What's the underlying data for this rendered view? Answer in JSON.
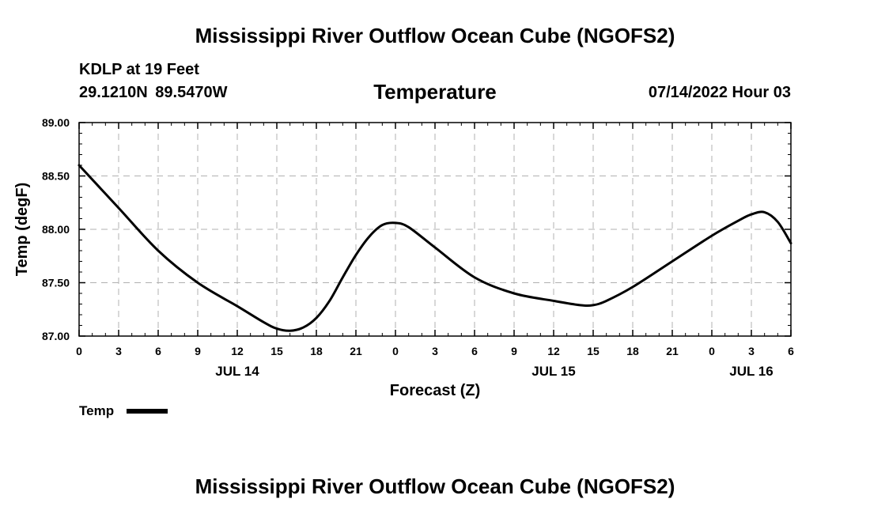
{
  "header": {
    "title": "Mississippi River Outflow Ocean Cube (NGOFS2)",
    "station": "KDLP at 19 Feet",
    "coords": "29.1210N  89.5470W",
    "subtitle": "Temperature",
    "datetime": "07/14/2022 Hour 03"
  },
  "footer": {
    "title": "Mississippi River Outflow Ocean Cube (NGOFS2)"
  },
  "chart_data": {
    "type": "line",
    "title": "Temperature",
    "xlabel": "Forecast (Z)",
    "ylabel": "Temp (degF)",
    "xlim": [
      0,
      54
    ],
    "ylim": [
      87.0,
      89.0
    ],
    "x_ticks": [
      0,
      3,
      6,
      9,
      12,
      15,
      18,
      21,
      24,
      27,
      30,
      33,
      36,
      39,
      42,
      45,
      48,
      51,
      54
    ],
    "x_tick_labels": [
      "0",
      "3",
      "6",
      "9",
      "12",
      "15",
      "18",
      "21",
      "0",
      "3",
      "6",
      "9",
      "12",
      "15",
      "18",
      "21",
      "0",
      "3",
      "6"
    ],
    "y_ticks": [
      87.0,
      87.5,
      88.0,
      88.5,
      89.0
    ],
    "y_tick_labels": [
      "87.00",
      "87.50",
      "88.00",
      "88.50",
      "89.00"
    ],
    "day_labels": [
      {
        "x": 12,
        "label": "JUL 14"
      },
      {
        "x": 36,
        "label": "JUL 15"
      },
      {
        "x": 51,
        "label": "JUL 16"
      }
    ],
    "grid": true,
    "legend": "bottom-left",
    "series": [
      {
        "name": "Temp",
        "color": "#000000",
        "x": [
          0,
          3,
          6,
          9,
          12,
          14,
          15,
          16,
          17,
          18,
          19,
          20,
          21,
          22,
          23,
          24,
          25,
          27,
          30,
          33,
          36,
          38,
          39,
          40,
          42,
          45,
          48,
          50,
          51,
          52,
          53,
          54
        ],
        "y": [
          88.6,
          88.2,
          87.8,
          87.5,
          87.28,
          87.13,
          87.07,
          87.05,
          87.08,
          87.17,
          87.33,
          87.55,
          87.76,
          87.93,
          88.04,
          88.06,
          88.02,
          87.83,
          87.55,
          87.4,
          87.33,
          87.29,
          87.29,
          87.33,
          87.46,
          87.7,
          87.94,
          88.08,
          88.14,
          88.16,
          88.07,
          87.87
        ]
      }
    ]
  }
}
